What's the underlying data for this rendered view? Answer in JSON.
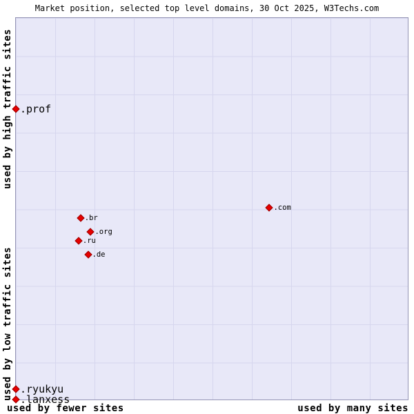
{
  "title": "Market position, selected top level domains, 30 Oct 2025, W3Techs.com",
  "colors": {
    "plot_bg": "#e8e8f8",
    "plot_border": "#9494b4",
    "grid": "#d6d6ee",
    "marker": "#e60000",
    "marker_border": "#990000"
  },
  "chart_data": {
    "type": "scatter",
    "title": "Market position, selected top level domains, 30 Oct 2025, W3Techs.com",
    "x_axis": {
      "left": "used by fewer sites",
      "right": "used by many sites"
    },
    "y_axis": {
      "top": "used by high traffic sites",
      "bottom": "used by low traffic sites"
    },
    "grid": true,
    "marker_shape": "diamond",
    "points": [
      {
        "label": ".prof",
        "x": 0.0,
        "y": 0.238,
        "label_size": "large"
      },
      {
        "label": ".com",
        "x": 0.647,
        "y": 0.497,
        "label_size": "small"
      },
      {
        "label": ".br",
        "x": 0.165,
        "y": 0.524,
        "label_size": "small"
      },
      {
        "label": ".org",
        "x": 0.191,
        "y": 0.56,
        "label_size": "small"
      },
      {
        "label": ".ru",
        "x": 0.16,
        "y": 0.584,
        "label_size": "small"
      },
      {
        "label": ".de",
        "x": 0.184,
        "y": 0.62,
        "label_size": "small"
      },
      {
        "label": ".ryukyu",
        "x": 0.0,
        "y": 0.973,
        "label_size": "large"
      },
      {
        "label": ".lanxess",
        "x": 0.0,
        "y": 1.0,
        "label_size": "large"
      }
    ]
  }
}
